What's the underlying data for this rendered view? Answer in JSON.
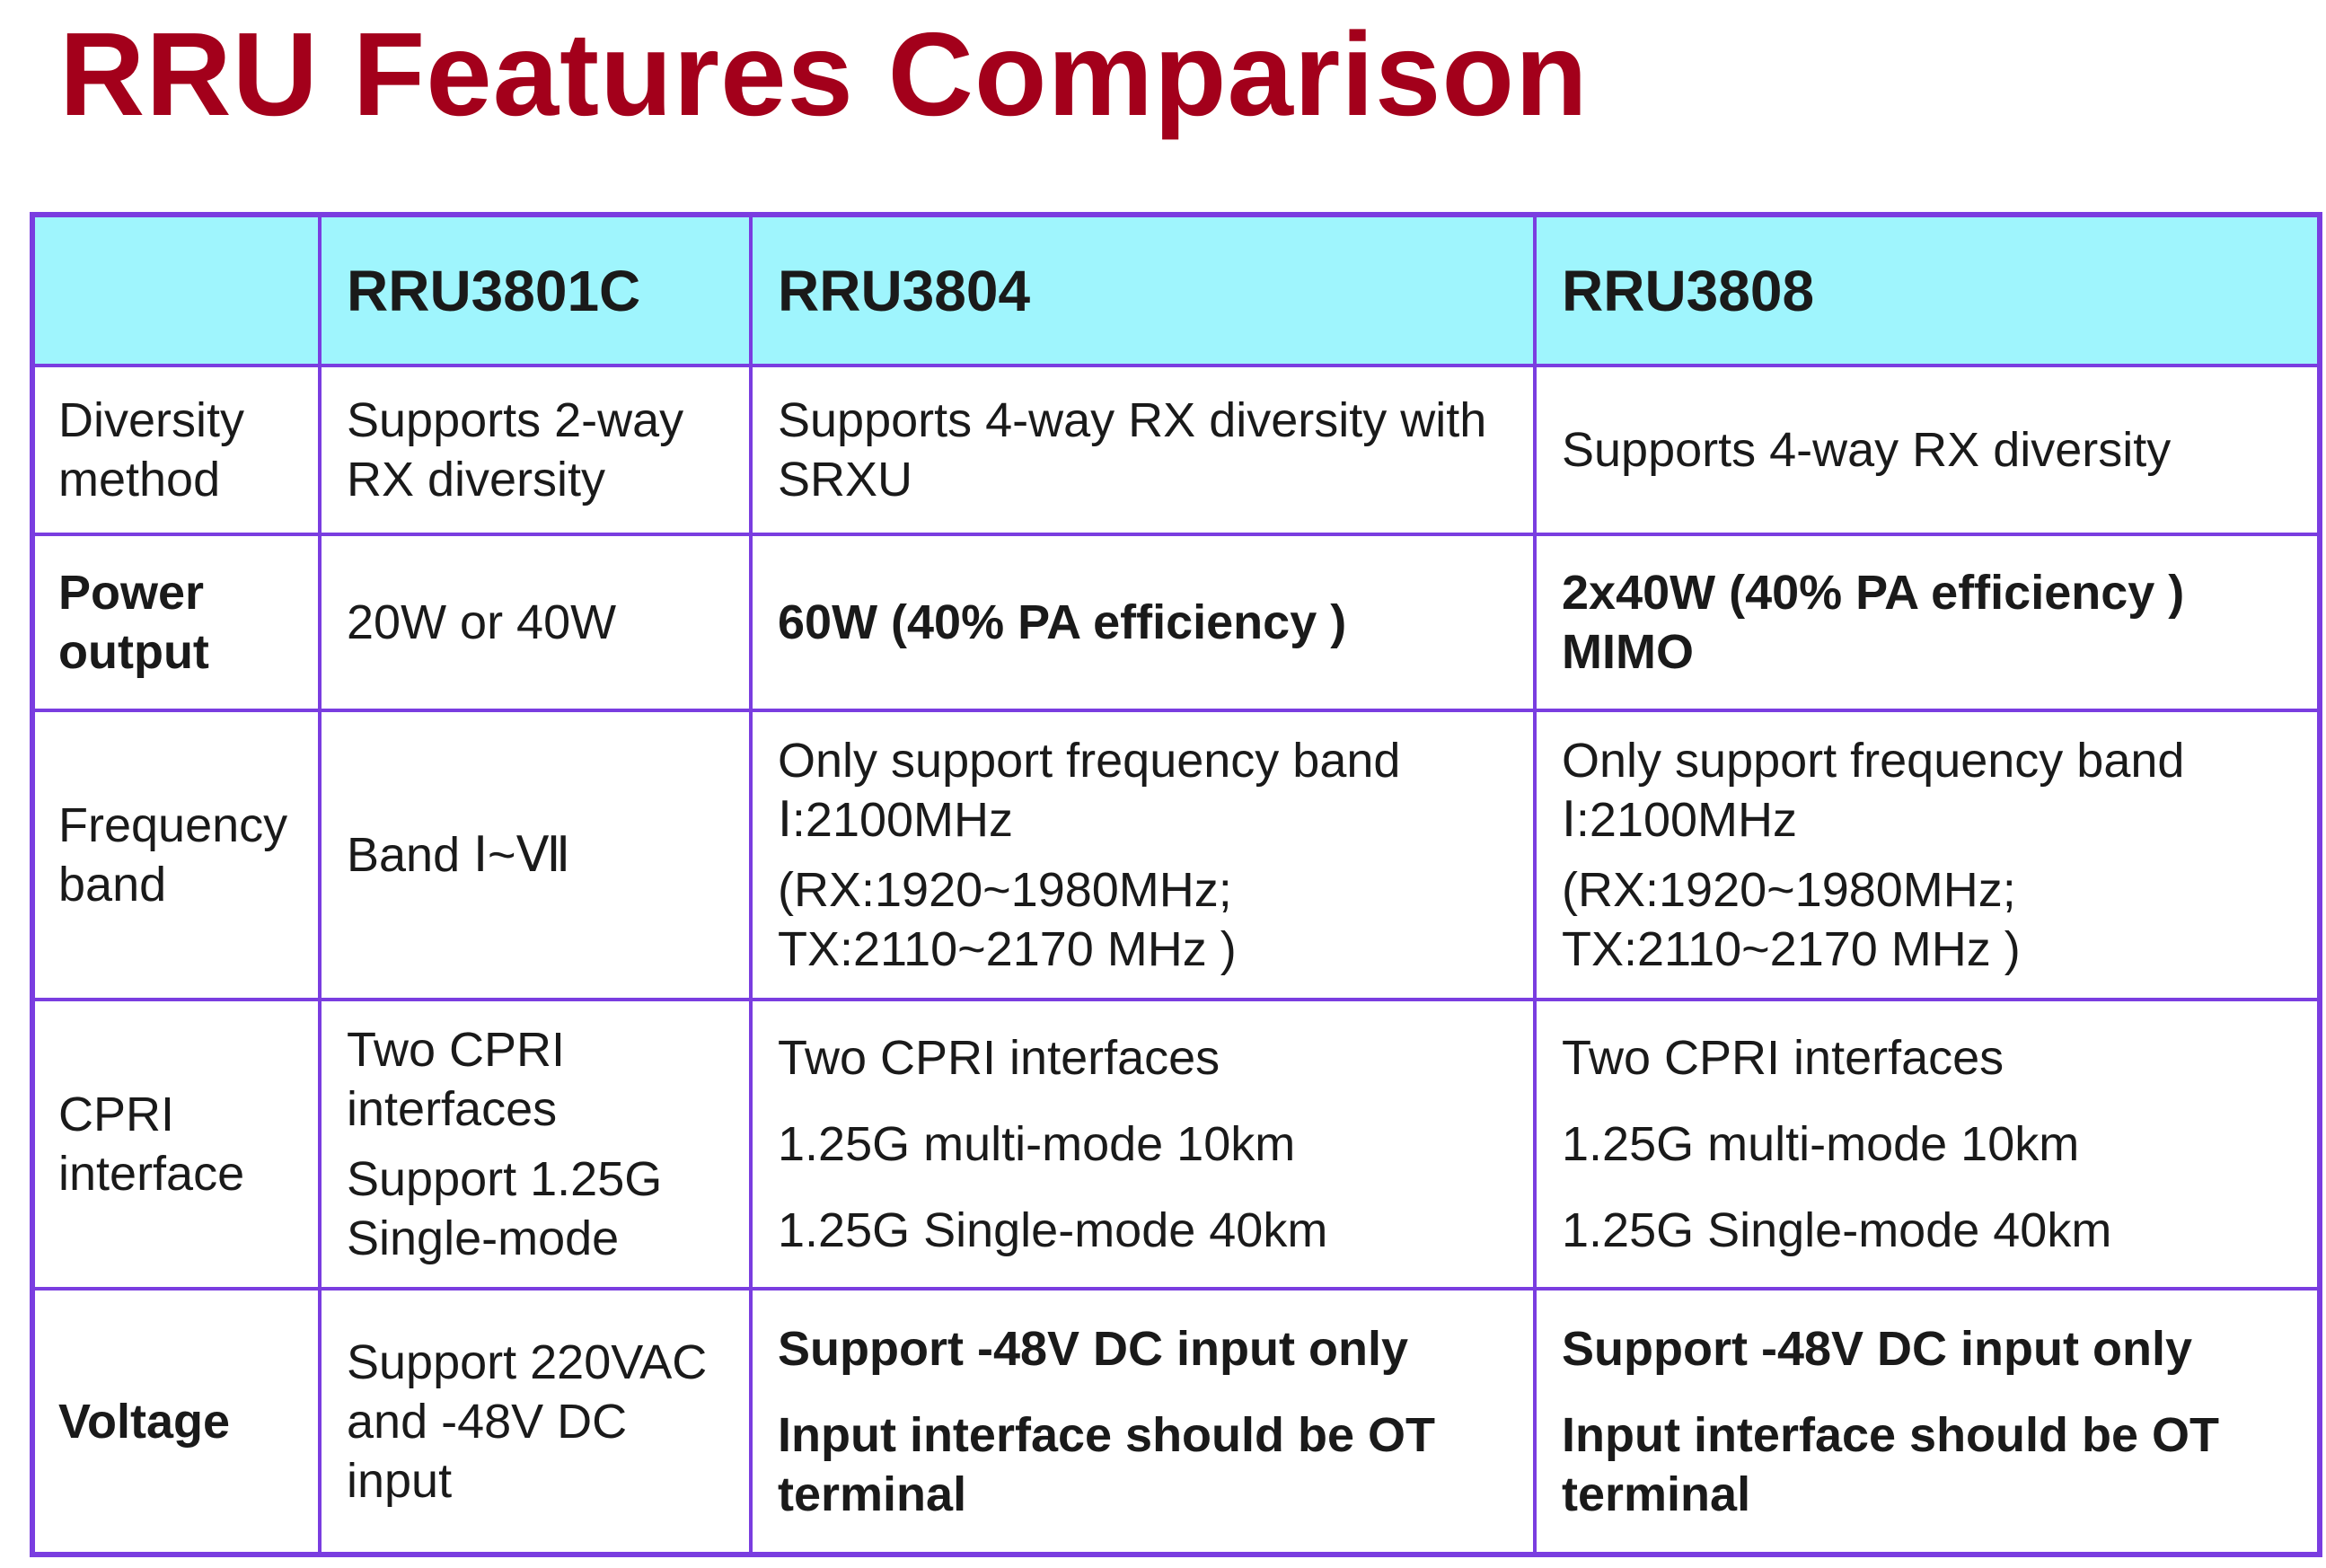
{
  "title": "RRU Features Comparison",
  "table": {
    "header": [
      "",
      "RRU3801C",
      "RRU3804",
      "RRU3808"
    ],
    "rows": [
      {
        "label": "Diversity method",
        "label_bold": false,
        "cells": [
          {
            "bold": false,
            "lines": [
              "Supports 2-way RX diversity"
            ]
          },
          {
            "bold": false,
            "lines": [
              "Supports 4-way RX diversity with SRXU"
            ]
          },
          {
            "bold": false,
            "lines": [
              "Supports 4-way RX diversity"
            ]
          }
        ]
      },
      {
        "label": "Power output",
        "label_bold": true,
        "cells": [
          {
            "bold": false,
            "lines": [
              "20W or 40W"
            ]
          },
          {
            "bold": true,
            "lines": [
              "60W (40% PA efficiency )"
            ]
          },
          {
            "bold": true,
            "lines": [
              "2x40W (40% PA efficiency ) MIMO"
            ]
          }
        ]
      },
      {
        "label": "Frequency band",
        "label_bold": false,
        "cells": [
          {
            "bold": false,
            "lines": [
              "Band Ⅰ~Ⅶ"
            ]
          },
          {
            "bold": false,
            "lines": [
              "Only support frequency band Ⅰ:2100MHz",
              "(RX:1920~1980MHz; TX:2110~2170 MHz )"
            ]
          },
          {
            "bold": false,
            "lines": [
              "Only support frequency band Ⅰ:2100MHz",
              "(RX:1920~1980MHz; TX:2110~2170 MHz )"
            ]
          }
        ]
      },
      {
        "label": "CPRI interface",
        "label_bold": false,
        "cells": [
          {
            "bold": false,
            "lines": [
              "Two CPRI interfaces",
              "Support 1.25G Single-mode"
            ]
          },
          {
            "bold": false,
            "lines": [
              "Two CPRI interfaces",
              "1.25G multi-mode 10km",
              "1.25G Single-mode 40km"
            ]
          },
          {
            "bold": false,
            "lines": [
              "Two CPRI interfaces",
              "1.25G multi-mode 10km",
              "1.25G Single-mode 40km"
            ]
          }
        ]
      },
      {
        "label": "Voltage",
        "label_bold": true,
        "cells": [
          {
            "bold": false,
            "lines": [
              "Support 220VAC and -48V DC input"
            ]
          },
          {
            "bold": true,
            "lines": [
              "Support -48V DC input only",
              "Input interface should be OT terminal"
            ]
          },
          {
            "bold": true,
            "lines": [
              "Support -48V DC input only",
              "Input interface should be OT terminal"
            ]
          }
        ]
      }
    ]
  }
}
